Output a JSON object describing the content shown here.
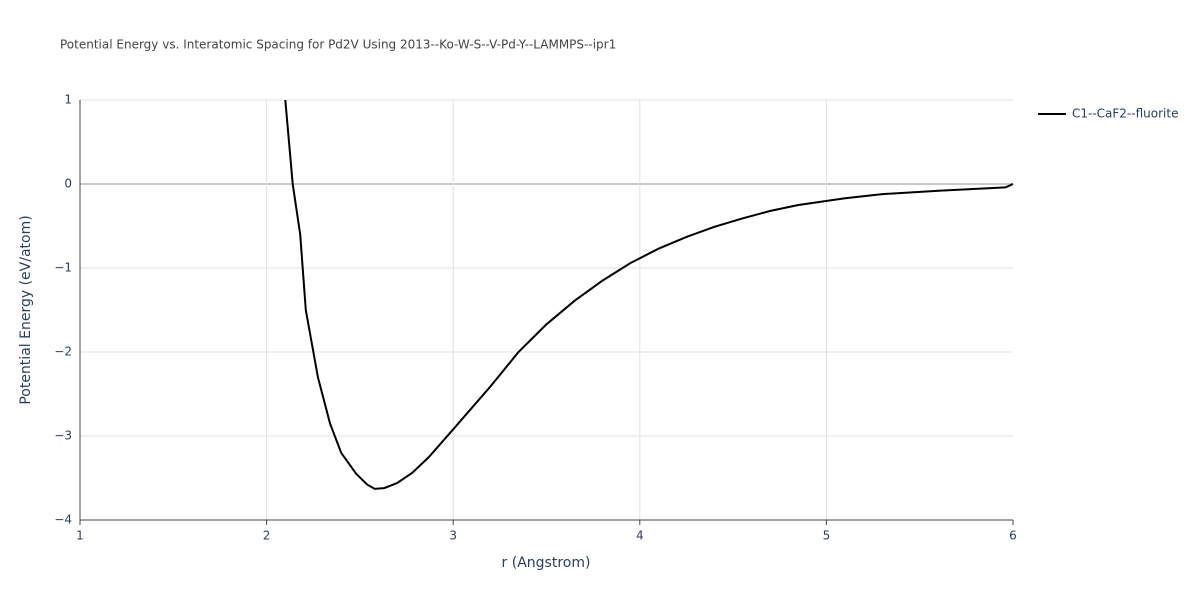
{
  "chart_data": {
    "type": "line",
    "title": "Potential Energy vs. Interatomic Spacing for Pd2V Using 2013--Ko-W-S--V-Pd-Y--LAMMPS--ipr1",
    "xlabel": "r (Angstrom)",
    "ylabel": "Potential Energy (eV/atom)",
    "x": [
      2.1,
      2.14,
      2.18,
      2.21,
      2.275,
      2.34,
      2.4,
      2.48,
      2.54,
      2.58,
      2.63,
      2.7,
      2.78,
      2.87,
      3.0,
      3.2,
      3.35,
      3.5,
      3.65,
      3.8,
      3.95,
      4.1,
      4.25,
      4.4,
      4.55,
      4.7,
      4.85,
      5.1,
      5.3,
      5.6,
      5.96,
      6.0
    ],
    "series": [
      {
        "name": "C1--CaF2--fluorite",
        "color": "#000000",
        "values": [
          1.0,
          0.0,
          -0.6,
          -1.5,
          -2.3,
          -2.85,
          -3.2,
          -3.45,
          -3.58,
          -3.63,
          -3.62,
          -3.56,
          -3.44,
          -3.25,
          -2.92,
          -2.41,
          -2.0,
          -1.67,
          -1.39,
          -1.15,
          -0.94,
          -0.77,
          -0.63,
          -0.51,
          -0.41,
          -0.32,
          -0.25,
          -0.17,
          -0.12,
          -0.08,
          -0.04,
          0.0
        ]
      }
    ],
    "xlim": [
      1,
      6
    ],
    "xticks": [
      1,
      2,
      3,
      4,
      5,
      6
    ],
    "ylim": [
      -4,
      1
    ],
    "yticks": [
      {
        "value": -4,
        "label": "−4"
      },
      {
        "value": -3,
        "label": "−3"
      },
      {
        "value": -2,
        "label": "−2"
      },
      {
        "value": -1,
        "label": "−1"
      },
      0,
      1
    ],
    "grid": true
  }
}
